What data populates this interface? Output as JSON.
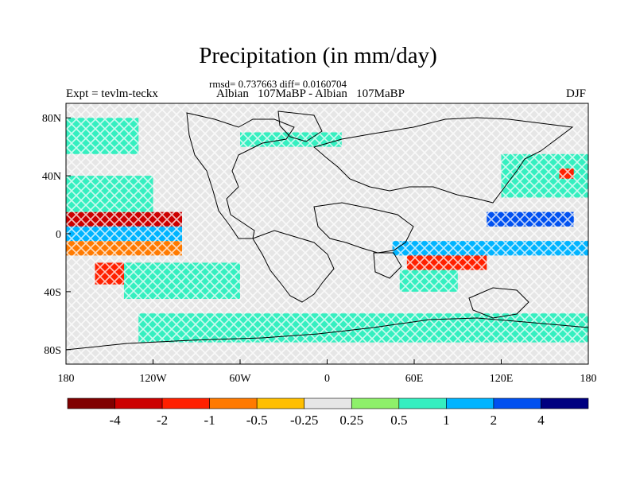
{
  "chart_data": {
    "type": "heatmap",
    "title": "Precipitation (in mm/day)",
    "stats_line": "rmsd= 0.737663 diff= 0.0160704",
    "left_label": "Expt = tevlm-teckx",
    "center_label": "Albian   107MaBP - Albian   107MaBP",
    "right_label": "DJF",
    "x_ticks": [
      "180",
      "120W",
      "60W",
      "0",
      "60E",
      "120E",
      "180"
    ],
    "y_ticks": [
      "80N",
      "40N",
      "0",
      "40S",
      "80S"
    ],
    "xlim": [
      -180,
      180
    ],
    "ylim": [
      -90,
      90
    ],
    "colorbar": {
      "colors": [
        "#800000",
        "#cc0000",
        "#ff2000",
        "#ff7a00",
        "#ffbf00",
        "#e6e6e6",
        "#8ef06a",
        "#35efc0",
        "#00b4ff",
        "#0050f0",
        "#000080"
      ],
      "labels": [
        "-4",
        "-2",
        "-1",
        "-0.5",
        "-0.25",
        "0.25",
        "0.5",
        "1",
        "2",
        "4"
      ]
    },
    "anomaly_regions": [
      {
        "lon": [
          -180,
          -100
        ],
        "lat": [
          5,
          15
        ],
        "level": "-2"
      },
      {
        "lon": [
          -160,
          -110
        ],
        "lat": [
          -35,
          -20
        ],
        "level": "-1"
      },
      {
        "lon": [
          -180,
          -100
        ],
        "lat": [
          -15,
          -5
        ],
        "level": "-0.5"
      },
      {
        "lon": [
          -150,
          -135
        ],
        "lat": [
          15,
          35
        ],
        "level": "-0.5"
      },
      {
        "lon": [
          -180,
          -100
        ],
        "lat": [
          -5,
          5
        ],
        "level": "1"
      },
      {
        "lon": [
          -140,
          -60
        ],
        "lat": [
          -45,
          -20
        ],
        "level": "0.5"
      },
      {
        "lon": [
          -180,
          -120
        ],
        "lat": [
          15,
          40
        ],
        "level": "0.5"
      },
      {
        "lon": [
          -180,
          -130
        ],
        "lat": [
          55,
          80
        ],
        "level": "0.5"
      },
      {
        "lon": [
          -60,
          10
        ],
        "lat": [
          60,
          70
        ],
        "level": "0.5"
      },
      {
        "lon": [
          55,
          110
        ],
        "lat": [
          -25,
          -10
        ],
        "level": "-1"
      },
      {
        "lon": [
          45,
          180
        ],
        "lat": [
          -15,
          -5
        ],
        "level": "1"
      },
      {
        "lon": [
          110,
          170
        ],
        "lat": [
          5,
          15
        ],
        "level": "2"
      },
      {
        "lon": [
          50,
          90
        ],
        "lat": [
          -40,
          -25
        ],
        "level": "0.5"
      },
      {
        "lon": [
          120,
          180
        ],
        "lat": [
          25,
          55
        ],
        "level": "0.5"
      },
      {
        "lon": [
          160,
          170
        ],
        "lat": [
          38,
          45
        ],
        "level": "-1"
      },
      {
        "lon": [
          -130,
          180
        ],
        "lat": [
          -75,
          -55
        ],
        "level": "0.5"
      }
    ]
  }
}
